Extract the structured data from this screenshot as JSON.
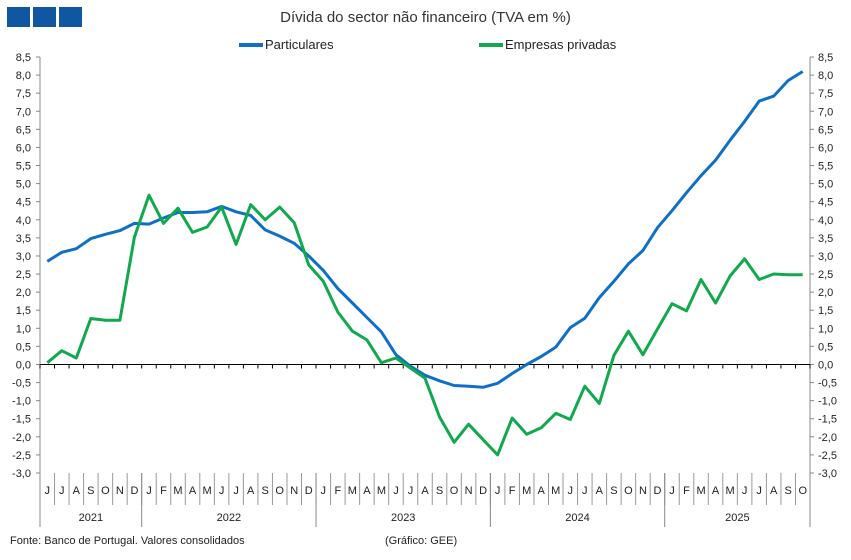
{
  "chart_data": {
    "type": "line",
    "title": "Dívida do sector não financeiro (TVA em %)",
    "months": [
      "J",
      "J",
      "A",
      "S",
      "O",
      "N",
      "D",
      "J",
      "F",
      "M",
      "A",
      "M",
      "J",
      "J",
      "A",
      "S",
      "O",
      "N",
      "D",
      "J",
      "F",
      "M",
      "A",
      "M",
      "J",
      "J",
      "A",
      "S",
      "O",
      "N",
      "D",
      "J",
      "F",
      "M",
      "A",
      "M",
      "J",
      "J",
      "A",
      "S",
      "O",
      "N",
      "D",
      "J",
      "F",
      "M",
      "A",
      "M",
      "J",
      "J",
      "A",
      "S",
      "O"
    ],
    "years": [
      {
        "label": "2021",
        "count": 7
      },
      {
        "label": "2022",
        "count": 12
      },
      {
        "label": "2023",
        "count": 12
      },
      {
        "label": "2024",
        "count": 12
      },
      {
        "label": "2025",
        "count": 10
      }
    ],
    "ylim": [
      -3.0,
      8.5
    ],
    "ytick_step": 0.5,
    "y_axes": [
      "left",
      "right"
    ],
    "legend_position": "top",
    "series": [
      {
        "name": "Particulares",
        "color": "#0f6fc6",
        "values": [
          2.85,
          3.1,
          3.2,
          3.48,
          3.6,
          3.7,
          3.9,
          3.88,
          4.05,
          4.2,
          4.2,
          4.22,
          4.37,
          4.22,
          4.12,
          3.72,
          3.55,
          3.35,
          3.0,
          2.6,
          2.1,
          1.7,
          1.3,
          0.9,
          0.27,
          -0.05,
          -0.3,
          -0.45,
          -0.58,
          -0.6,
          -0.63,
          -0.52,
          -0.25,
          0.0,
          0.22,
          0.48,
          1.02,
          1.28,
          1.85,
          2.3,
          2.78,
          3.15,
          3.78,
          4.25,
          4.75,
          5.22,
          5.65,
          6.2,
          6.72,
          7.28,
          7.42,
          7.85,
          8.1
        ]
      },
      {
        "name": "Empresas privadas",
        "color": "#11a84e",
        "values": [
          0.05,
          0.38,
          0.18,
          1.27,
          1.22,
          1.22,
          3.52,
          4.68,
          3.9,
          4.32,
          3.65,
          3.8,
          4.35,
          3.32,
          4.42,
          4.0,
          4.35,
          3.92,
          2.75,
          2.3,
          1.45,
          0.92,
          0.68,
          0.05,
          0.18,
          -0.1,
          -0.38,
          -1.45,
          -2.15,
          -1.65,
          -2.08,
          -2.5,
          -1.48,
          -1.93,
          -1.75,
          -1.35,
          -1.52,
          -0.6,
          -1.08,
          0.25,
          0.92,
          0.27,
          0.98,
          1.68,
          1.48,
          2.35,
          1.7,
          2.45,
          2.92,
          2.35,
          2.5,
          2.48,
          2.48
        ]
      }
    ]
  },
  "footer": {
    "source": "Fonte: Banco de Portugal. Valores consolidados",
    "credit": "(Gráfico: GEE)"
  },
  "logo": {
    "color": "#0f57a0"
  }
}
